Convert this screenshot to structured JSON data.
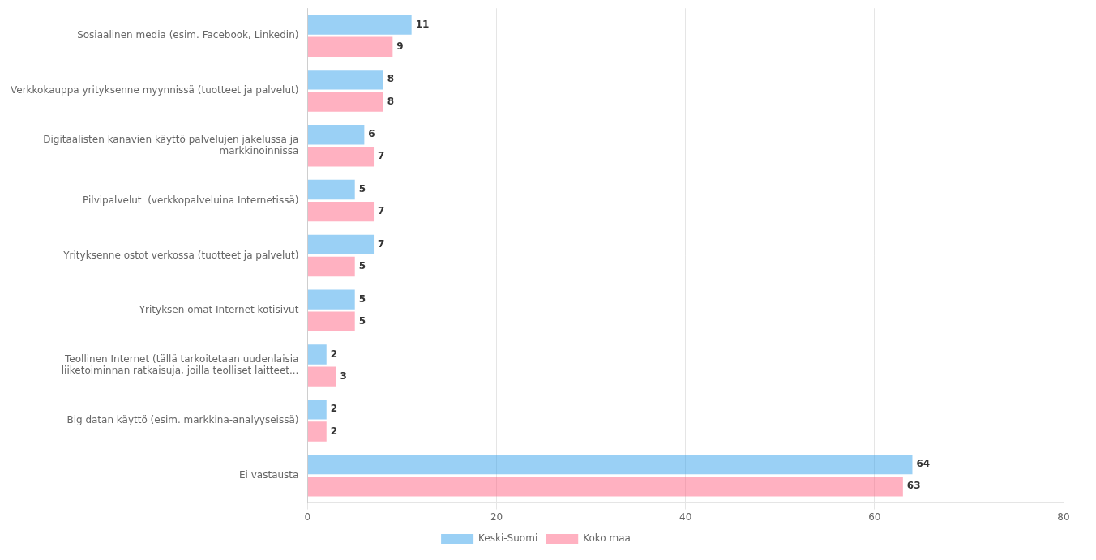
{
  "chart_data": {
    "type": "bar",
    "orientation": "horizontal",
    "categories": [
      "Sosiaalinen media (esim. Facebook, Linkedin)",
      "Verkkokauppa yrityksenne myynnissä (tuotteet ja palvelut)",
      "Digitaalisten kanavien käyttö palvelujen jakelussa ja\nmarkkinoinnissa",
      "Pilvipalvelut  (verkkopalveluina Internetissä)",
      "Yrityksenne ostot verkossa (tuotteet ja palvelut)",
      "Yrityksen omat Internet kotisivut",
      "Teollinen Internet (tällä tarkoitetaan uudenlaisia\nliiketoiminnan ratkaisuja, joilla teolliset laitteet...",
      "Big datan käyttö (esim. markkina-analyyseissä)",
      "Ei vastausta"
    ],
    "series": [
      {
        "name": "Keski-Suomi",
        "values": [
          11,
          8,
          6,
          5,
          7,
          5,
          2,
          2,
          64
        ]
      },
      {
        "name": "Koko maa",
        "values": [
          9,
          8,
          7,
          7,
          5,
          5,
          3,
          2,
          63
        ]
      }
    ],
    "xlim": [
      0,
      80
    ],
    "xticks": [
      0,
      20,
      40,
      60,
      80
    ],
    "grid": true,
    "legend": "bottom",
    "data_labels": true
  }
}
